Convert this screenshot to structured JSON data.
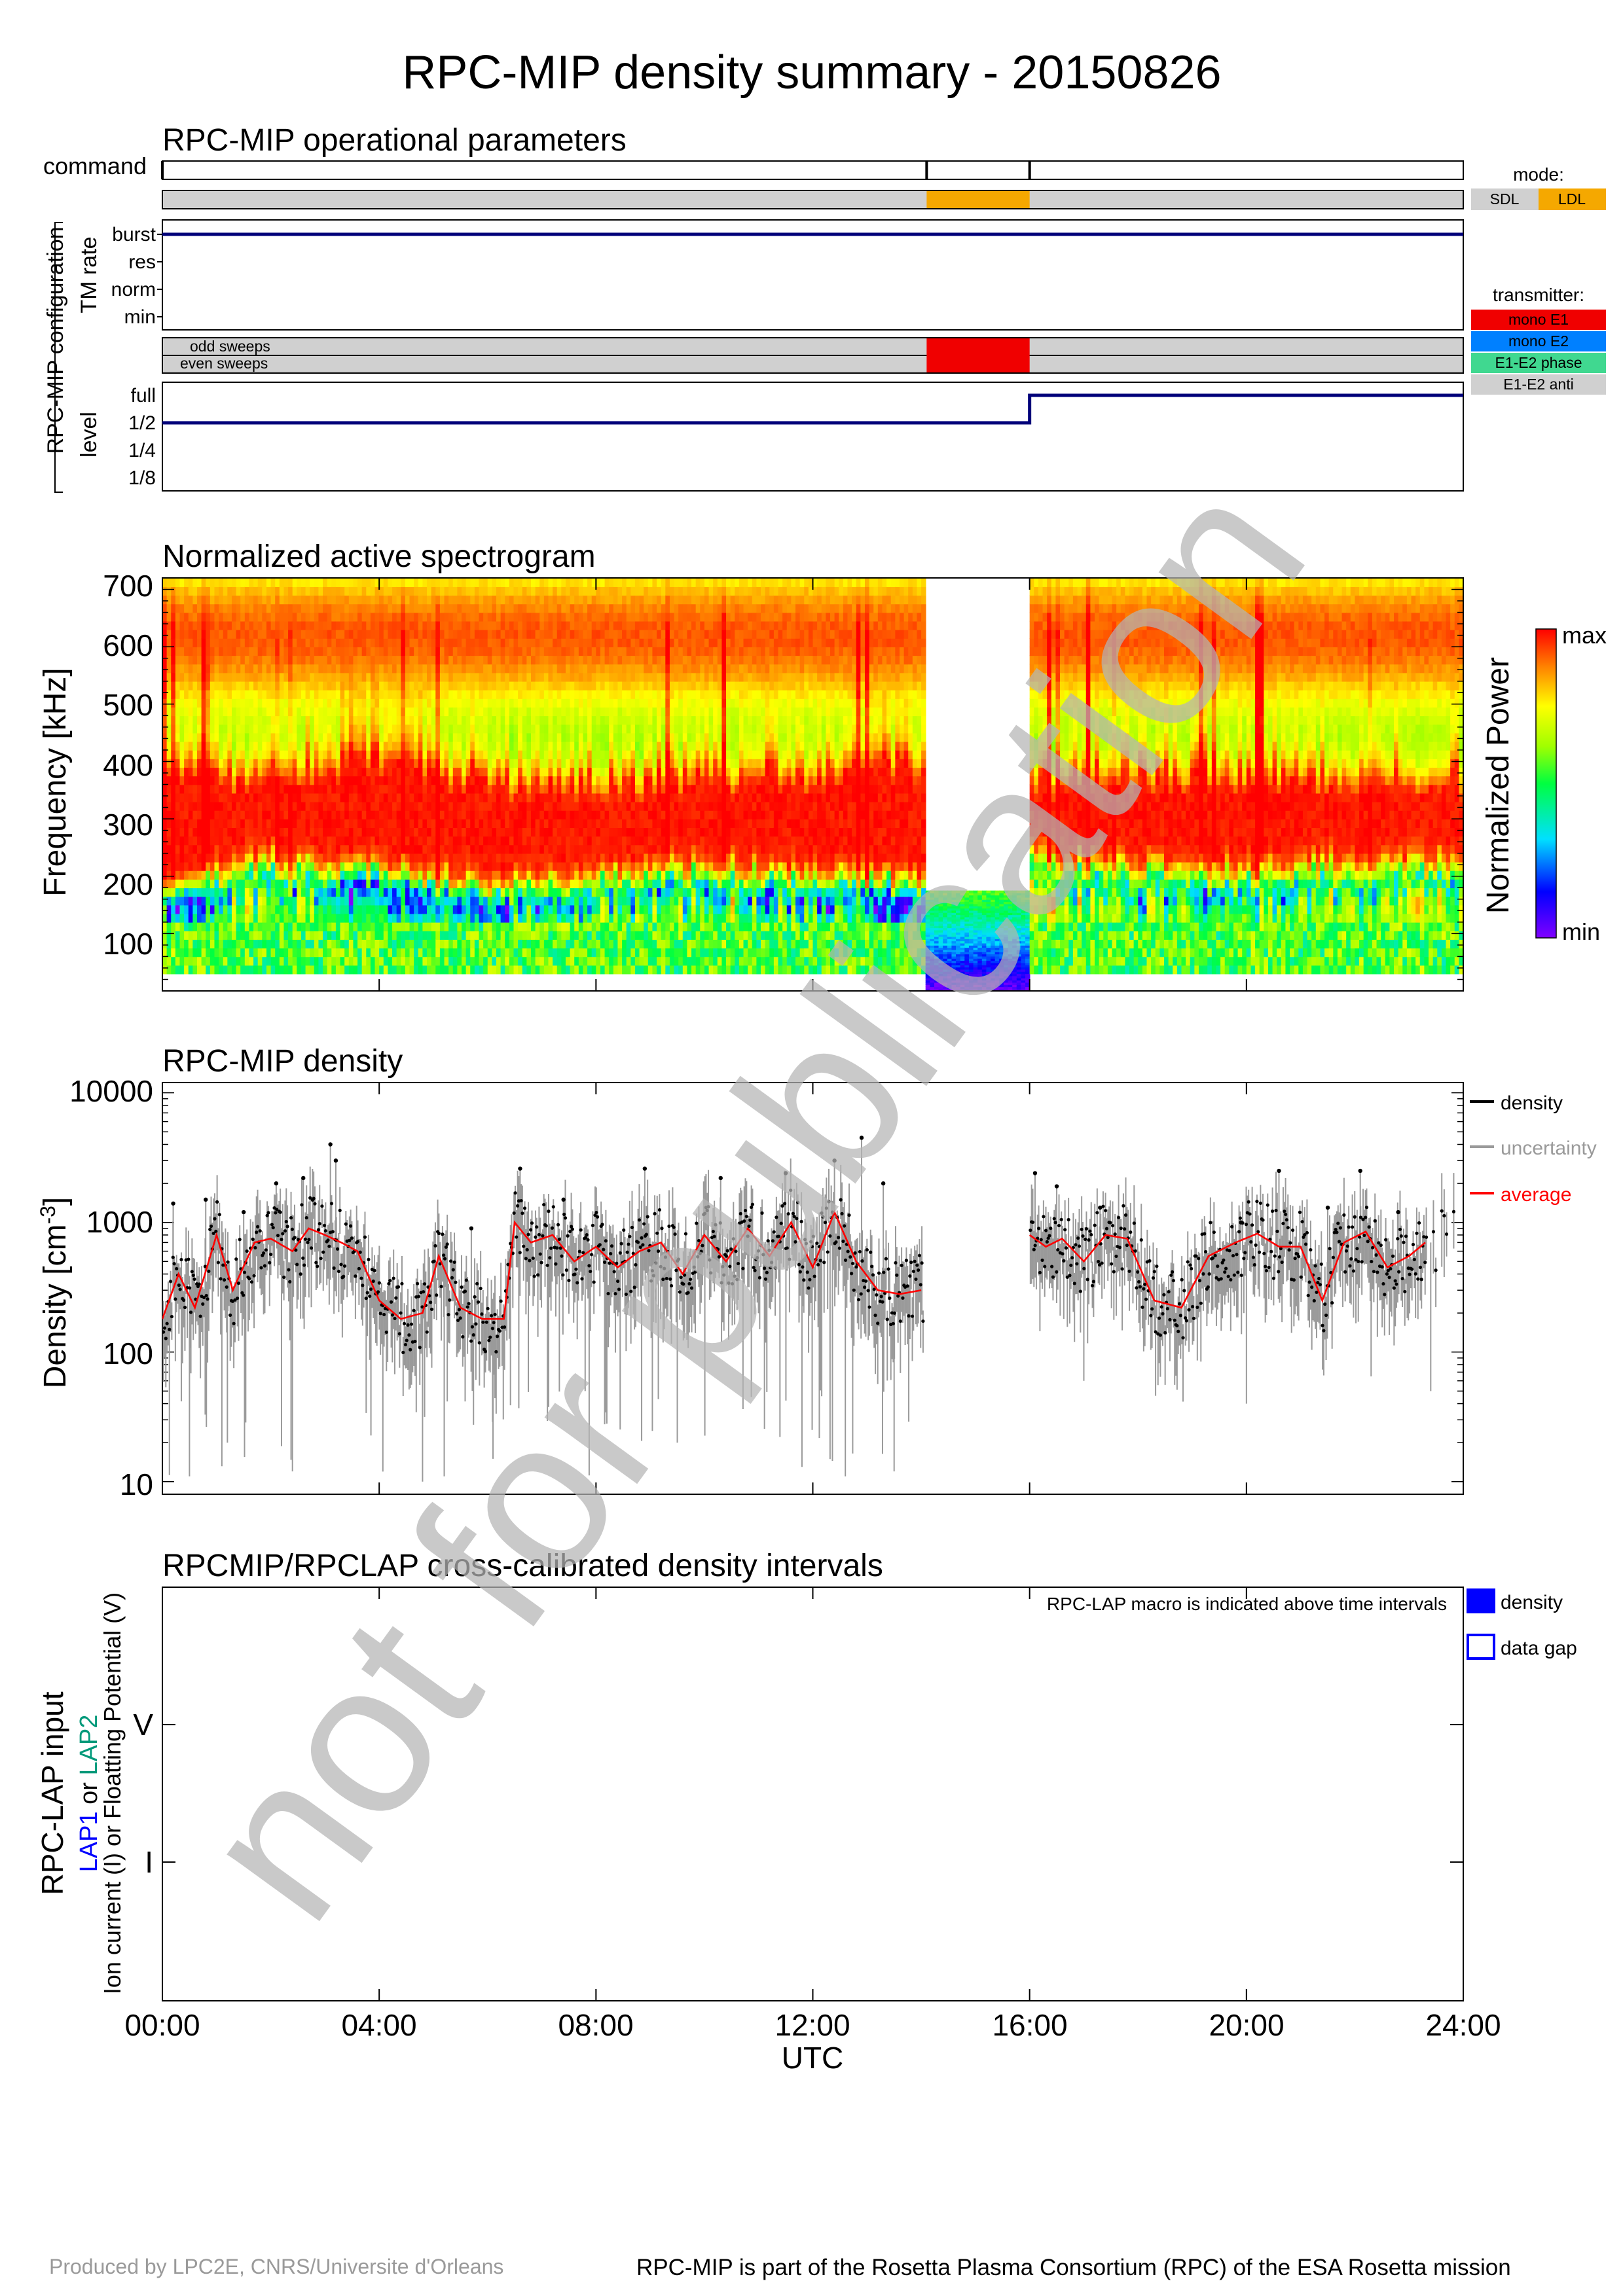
{
  "title": "RPC-MIP density summary - 20150826",
  "watermark": "not for publication",
  "x_axis": {
    "ticks": [
      "00:00",
      "04:00",
      "08:00",
      "12:00",
      "16:00",
      "20:00",
      "24:00"
    ],
    "label": "UTC"
  },
  "ops": {
    "title": "RPC-MIP operational parameters",
    "command_label": "command",
    "config_label": "RPC-MIP configuration",
    "tm_label": "TM rate",
    "tm_levels": [
      "burst",
      "res",
      "norm",
      "min"
    ],
    "level_label": "level",
    "levels": [
      "full",
      "1/2",
      "1/4",
      "1/8"
    ],
    "odd_label": "odd sweeps",
    "even_label": "even sweeps",
    "mode_legend": {
      "title": "mode:",
      "items": [
        "SDL",
        "LDL"
      ],
      "colors": [
        "#d0d0d0",
        "#f5a800"
      ]
    },
    "transmitter_legend": {
      "title": "transmitter:",
      "items": [
        "mono E1",
        "mono E2",
        "E1-E2 phase",
        "E1-E2 anti"
      ],
      "colors": [
        "#f00000",
        "#0080ff",
        "#40d890",
        "#d0d0d0"
      ]
    }
  },
  "spectrogram": {
    "title": "Normalized active spectrogram",
    "ylabel": "Frequency [kHz]",
    "yticks": [
      "700",
      "600",
      "500",
      "400",
      "300",
      "200",
      "100"
    ],
    "colorbar_label": "Normalized Power",
    "colorbar_max": "max",
    "colorbar_min": "min"
  },
  "density": {
    "title": "RPC-MIP density",
    "ylabel": "Density [cm",
    "ylabel_sup": "-3",
    "ylabel_end": "]",
    "yticks": [
      "10000",
      "1000",
      "100",
      "10"
    ],
    "legend": [
      {
        "label": "density",
        "color": "#000000"
      },
      {
        "label": "uncertainty",
        "color": "#9a9a9a"
      },
      {
        "label": "average",
        "color": "#ff0000"
      }
    ]
  },
  "lap": {
    "title": "RPCMIP/RPCLAP cross-calibrated density intervals",
    "note": "RPC-LAP macro is indicated above time intervals",
    "ylabel1": "RPC-LAP input",
    "ylabel2_a": "LAP1",
    "ylabel2_b": " or ",
    "ylabel2_c": "LAP2",
    "ylabel3": "Ion current (I) or Floatting Potential (V)",
    "yticks": [
      "V",
      "I"
    ],
    "legend": [
      {
        "label": "density",
        "style": "filled"
      },
      {
        "label": "data gap",
        "style": "outline"
      }
    ],
    "color": "#0000ff"
  },
  "footer": {
    "left": "Produced by LPC2E, CNRS/Universite d'Orleans",
    "right": "RPC-MIP is part of the Rosetta Plasma Consortium (RPC) of the ESA Rosetta mission"
  },
  "chart_data": [
    {
      "type": "line",
      "title": "RPC-MIP operational parameters",
      "x_unit": "hours UTC",
      "xlim": [
        0,
        24
      ],
      "command_marks_h": [
        0,
        14.1,
        16.0
      ],
      "mode": [
        {
          "from": 0,
          "to": 14.1,
          "value": "SDL"
        },
        {
          "from": 14.1,
          "to": 16.0,
          "value": "LDL"
        },
        {
          "from": 16.0,
          "to": 24,
          "value": "SDL"
        }
      ],
      "tm_rate": [
        {
          "from": 0,
          "to": 24,
          "value": "burst"
        }
      ],
      "transmitter": [
        {
          "from": 0,
          "to": 14.1,
          "value": "E1-E2 anti"
        },
        {
          "from": 14.1,
          "to": 16.0,
          "value": "mono E1"
        },
        {
          "from": 16.0,
          "to": 24,
          "value": "E1-E2 anti"
        }
      ],
      "level": [
        {
          "from": 0,
          "to": 16.0,
          "value": "1/2"
        },
        {
          "from": 16.0,
          "to": 24,
          "value": "full"
        }
      ]
    },
    {
      "type": "heatmap",
      "title": "Normalized active spectrogram",
      "ylabel": "Frequency [kHz]",
      "xlim": [
        0,
        24
      ],
      "ylim": [
        0,
        720
      ],
      "color_scale": [
        "min",
        "max"
      ],
      "sdl_freq_range_khz": [
        30,
        720
      ],
      "ldl_interval_h": [
        14.1,
        16.0
      ],
      "ldl_freq_range_khz": [
        0,
        175
      ],
      "time_h": [
        0,
        2,
        4,
        6,
        8,
        10,
        12,
        13,
        14.1,
        16,
        18,
        20,
        22,
        24
      ],
      "peak_freq_khz": [
        270,
        280,
        300,
        270,
        260,
        270,
        280,
        290,
        290,
        270,
        275,
        280,
        275,
        270
      ],
      "min_freq_khz": [
        150,
        190,
        180,
        150,
        170,
        180,
        170,
        160,
        150,
        200,
        180,
        175,
        190,
        185
      ]
    },
    {
      "type": "scatter",
      "title": "RPC-MIP density",
      "ylabel": "Density [cm-3]",
      "yscale": "log",
      "xlim": [
        0,
        24
      ],
      "ylim": [
        8,
        12000
      ],
      "gaps_h": [
        [
          14.1,
          16.0
        ]
      ],
      "series": [
        {
          "name": "average",
          "x": [
            0,
            0.3,
            0.6,
            1.0,
            1.3,
            1.7,
            2.0,
            2.4,
            2.7,
            3.0,
            3.3,
            3.6,
            4.0,
            4.4,
            4.8,
            5.1,
            5.5,
            5.9,
            6.3,
            6.5,
            6.8,
            7.2,
            7.6,
            8.0,
            8.4,
            8.8,
            9.2,
            9.6,
            10.0,
            10.4,
            10.8,
            11.2,
            11.6,
            12.0,
            12.4,
            12.8,
            13.2,
            13.6,
            14.0,
            16.0,
            16.3,
            16.6,
            17.0,
            17.4,
            17.8,
            18.3,
            18.8,
            19.3,
            19.8,
            20.2,
            20.6,
            21.0,
            21.4,
            21.8,
            22.2,
            22.6,
            23.0,
            23.3
          ],
          "y": [
            180,
            400,
            220,
            800,
            300,
            700,
            750,
            600,
            900,
            800,
            700,
            600,
            250,
            180,
            200,
            550,
            220,
            180,
            180,
            1000,
            700,
            800,
            500,
            650,
            450,
            600,
            700,
            400,
            800,
            500,
            900,
            550,
            1000,
            450,
            1200,
            500,
            300,
            280,
            300,
            800,
            650,
            750,
            500,
            800,
            750,
            250,
            220,
            550,
            700,
            820,
            650,
            650,
            250,
            700,
            850,
            450,
            550,
            700
          ]
        },
        {
          "name": "density",
          "x": [
            0.2,
            0.8,
            1.5,
            2.1,
            2.6,
            3.1,
            3.2,
            5.7,
            6.6,
            7.4,
            8.9,
            10.3,
            11.5,
            12.4,
            12.9,
            13.3,
            16.1,
            16.5,
            17.3,
            19.9,
            20.6,
            21.5,
            22.1,
            22.8
          ],
          "y": [
            1400,
            1500,
            1200,
            2000,
            2200,
            4000,
            3000,
            900,
            2600,
            1500,
            2600,
            2200,
            2400,
            3000,
            4500,
            2000,
            2400,
            1900,
            1300,
            1000,
            2500,
            1300,
            2500,
            1200
          ]
        },
        {
          "name": "uncertainty",
          "x": [
            0.5,
            1.2,
            2.4,
            4.8,
            5.2,
            6.1,
            7.8,
            8.2,
            9.5,
            11.8,
            12.6,
            13.5,
            17.0,
            20.0,
            22.3,
            23.4
          ],
          "y": [
            11,
            20,
            12,
            10,
            11,
            15,
            50,
            28,
            20,
            13,
            11,
            12,
            60,
            40,
            65,
            50
          ]
        }
      ]
    },
    {
      "type": "bar",
      "title": "RPCMIP/RPCLAP cross-calibrated density intervals",
      "categories": [
        "V",
        "I"
      ],
      "intervals": []
    }
  ]
}
